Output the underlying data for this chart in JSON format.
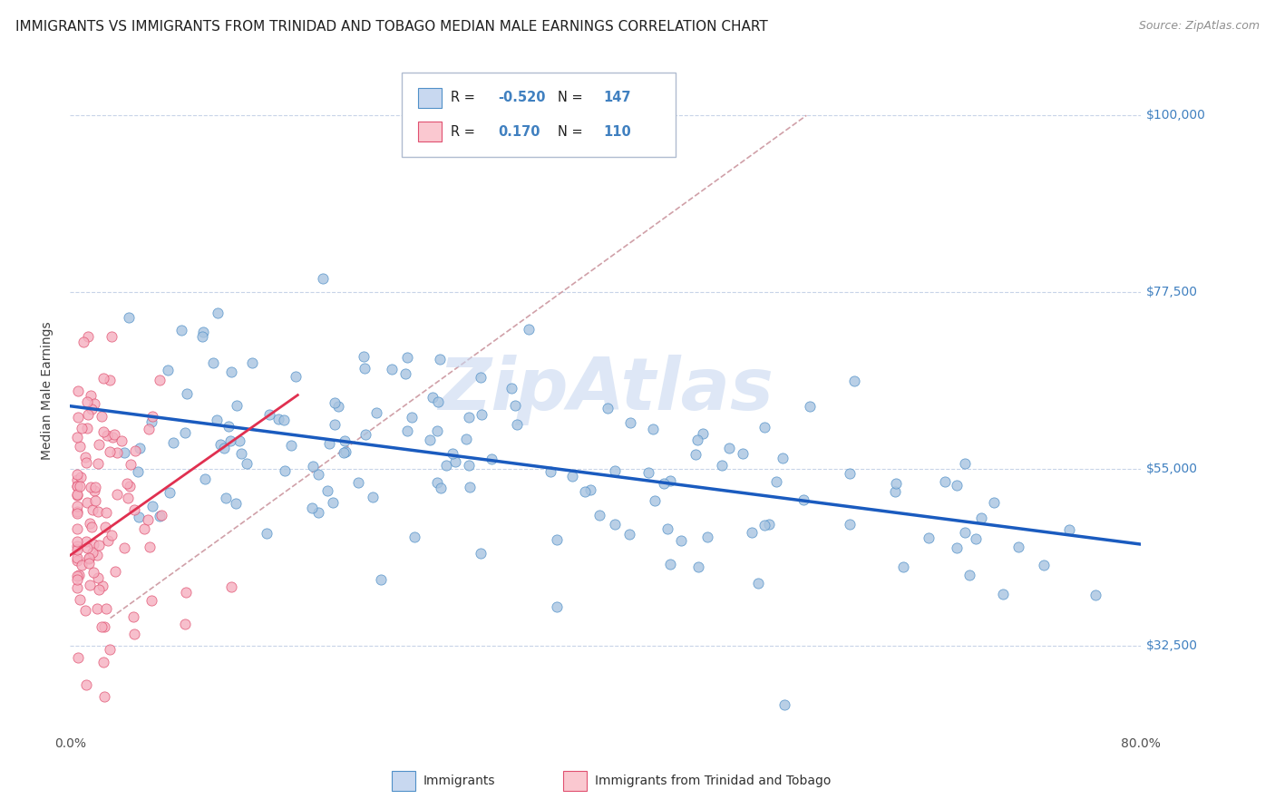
{
  "title": "IMMIGRANTS VS IMMIGRANTS FROM TRINIDAD AND TOBAGO MEDIAN MALE EARNINGS CORRELATION CHART",
  "source": "Source: ZipAtlas.com",
  "ylabel": "Median Male Earnings",
  "xlim": [
    0.0,
    0.8
  ],
  "ylim": [
    22000,
    108000
  ],
  "yticks": [
    32500,
    55000,
    77500,
    100000
  ],
  "ytick_labels": [
    "$32,500",
    "$55,000",
    "$77,500",
    "$100,000"
  ],
  "xticks": [
    0.0,
    0.1,
    0.2,
    0.3,
    0.4,
    0.5,
    0.6,
    0.7,
    0.8
  ],
  "blue_R": -0.52,
  "blue_N": 147,
  "pink_R": 0.17,
  "pink_N": 110,
  "scatter_color_blue": "#a8c4e0",
  "scatter_edge_blue": "#5090c8",
  "scatter_color_pink": "#f5b0c0",
  "scatter_edge_pink": "#e05070",
  "line_color_blue": "#1a5bbf",
  "line_color_pink": "#e03050",
  "ref_line_color": "#d0a0a8",
  "watermark": "ZipAtlas",
  "watermark_color": "#c8d8f0",
  "legend_box_color_blue": "#c8d8f0",
  "legend_box_color_pink": "#fac8d0",
  "axis_label_color": "#4080c0",
  "background_color": "#ffffff",
  "grid_color": "#c8d4e8",
  "title_fontsize": 11,
  "source_fontsize": 9,
  "tick_label_fontsize": 10,
  "ylabel_fontsize": 10,
  "blue_intercept": 63000,
  "blue_slope": -22000,
  "pink_intercept": 44000,
  "pink_slope": 120000,
  "ref_line_x0": 0.03,
  "ref_line_y0": 36000,
  "ref_line_x1": 0.55,
  "ref_line_y1": 100000
}
